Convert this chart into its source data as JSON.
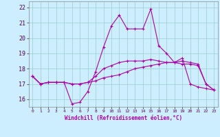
{
  "x": [
    0,
    1,
    2,
    3,
    4,
    5,
    6,
    7,
    8,
    9,
    10,
    11,
    12,
    13,
    14,
    15,
    16,
    17,
    18,
    19,
    20,
    21,
    22,
    23
  ],
  "line1": [
    17.5,
    17.0,
    17.1,
    17.1,
    17.1,
    15.7,
    15.8,
    16.5,
    17.8,
    19.4,
    20.8,
    21.5,
    20.6,
    20.6,
    20.6,
    21.9,
    19.5,
    19.0,
    18.4,
    18.7,
    17.0,
    16.8,
    16.7,
    16.6
  ],
  "line2": [
    17.5,
    17.0,
    17.1,
    17.1,
    17.1,
    17.0,
    17.0,
    17.1,
    17.2,
    17.4,
    17.5,
    17.6,
    17.8,
    18.0,
    18.1,
    18.2,
    18.3,
    18.4,
    18.4,
    18.5,
    18.4,
    18.3,
    17.0,
    16.6
  ],
  "line3": [
    17.5,
    17.0,
    17.1,
    17.1,
    17.1,
    17.0,
    17.0,
    17.1,
    17.5,
    18.0,
    18.2,
    18.4,
    18.5,
    18.5,
    18.5,
    18.6,
    18.5,
    18.4,
    18.4,
    18.3,
    18.3,
    18.2,
    17.0,
    16.6
  ],
  "color": "#aa00aa",
  "bg_color": "#cceeff",
  "grid_color": "#99cccc",
  "xlabel": "Windchill (Refroidissement éolien,°C)",
  "yticks": [
    16,
    17,
    18,
    19,
    20,
    21,
    22
  ],
  "xticks": [
    0,
    1,
    2,
    3,
    4,
    5,
    6,
    7,
    8,
    9,
    10,
    11,
    12,
    13,
    14,
    15,
    16,
    17,
    18,
    19,
    20,
    21,
    22,
    23
  ],
  "ylim": [
    15.5,
    22.4
  ],
  "xlim": [
    -0.5,
    23.5
  ]
}
